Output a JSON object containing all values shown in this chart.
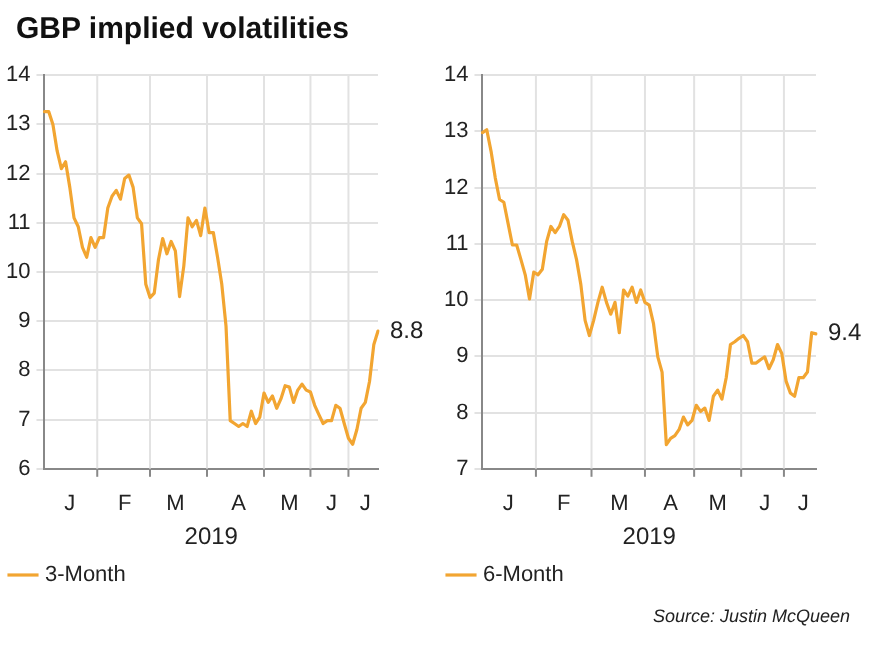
{
  "chart_data": [
    {
      "type": "line",
      "title": "GBP implied volatilities",
      "xlabel": "2019",
      "legend": "bottom",
      "grid": true,
      "marker": "none",
      "line_style": "solid",
      "categories": [
        null,
        null,
        null,
        null,
        null,
        null,
        "J",
        null,
        null,
        null,
        null,
        null,
        null,
        null,
        null,
        null,
        null,
        null,
        null,
        "F",
        null,
        null,
        null,
        null,
        null,
        null,
        null,
        null,
        null,
        null,
        null,
        "M",
        null,
        null,
        null,
        null,
        null,
        null,
        null,
        null,
        null,
        null,
        null,
        null,
        null,
        null,
        "A",
        null,
        null,
        null,
        null,
        null,
        null,
        null,
        null,
        null,
        null,
        null,
        "M",
        null,
        null,
        null,
        null,
        null,
        null,
        null,
        null,
        null,
        "J",
        null,
        null,
        null,
        null,
        null,
        null,
        null,
        "J",
        null,
        null,
        null
      ],
      "ylim": [
        6,
        14
      ],
      "yticks": [
        6,
        7,
        8,
        9,
        10,
        11,
        12,
        13,
        14
      ],
      "series": [
        {
          "name": "3-Month",
          "color": "#f2a531",
          "value_labels": [
            null,
            null,
            null,
            null,
            null,
            null,
            null,
            null,
            null,
            null,
            null,
            null,
            null,
            null,
            null,
            null,
            null,
            null,
            null,
            null,
            null,
            null,
            null,
            null,
            null,
            null,
            null,
            null,
            null,
            null,
            null,
            null,
            null,
            null,
            null,
            null,
            null,
            null,
            null,
            null,
            null,
            null,
            null,
            null,
            null,
            null,
            null,
            null,
            null,
            null,
            null,
            null,
            null,
            null,
            null,
            null,
            null,
            null,
            null,
            null,
            null,
            null,
            null,
            null,
            null,
            null,
            null,
            null,
            null,
            null,
            null,
            null,
            null,
            null,
            null,
            null,
            null,
            null,
            null,
            "8.8"
          ],
          "values": [
            13.26,
            13.26,
            13.0,
            12.46,
            12.1,
            12.24,
            11.72,
            11.1,
            10.92,
            10.5,
            10.3,
            10.7,
            10.5,
            10.7,
            10.7,
            11.3,
            11.54,
            11.66,
            11.48,
            11.9,
            11.97,
            11.72,
            11.1,
            10.98,
            9.75,
            9.48,
            9.57,
            10.25,
            10.68,
            10.37,
            10.62,
            10.43,
            9.5,
            10.12,
            11.1,
            10.92,
            11.05,
            10.74,
            11.3,
            10.8,
            10.8,
            10.3,
            9.75,
            8.9,
            6.98,
            6.92,
            6.86,
            6.92,
            6.86,
            7.17,
            6.92,
            7.05,
            7.54,
            7.35,
            7.48,
            7.23,
            7.42,
            7.69,
            7.66,
            7.35,
            7.6,
            7.72,
            7.6,
            7.56,
            7.29,
            7.1,
            6.92,
            6.98,
            6.98,
            7.29,
            7.23,
            6.92,
            6.62,
            6.5,
            6.8,
            7.23,
            7.35,
            7.78,
            8.52,
            8.8
          ]
        }
      ]
    },
    {
      "type": "line",
      "xlabel": "2019",
      "legend": "bottom",
      "grid": true,
      "marker": "none",
      "line_style": "solid",
      "categories": [
        null,
        null,
        null,
        null,
        null,
        null,
        "J",
        null,
        null,
        null,
        null,
        null,
        null,
        null,
        null,
        null,
        null,
        null,
        null,
        "F",
        null,
        null,
        null,
        null,
        null,
        null,
        null,
        null,
        null,
        null,
        null,
        null,
        "M",
        null,
        null,
        null,
        null,
        null,
        null,
        null,
        null,
        null,
        null,
        null,
        "A",
        null,
        null,
        null,
        null,
        null,
        null,
        null,
        null,
        null,
        null,
        "M",
        null,
        null,
        null,
        null,
        null,
        null,
        null,
        null,
        null,
        null,
        "J",
        null,
        null,
        null,
        null,
        null,
        null,
        null,
        null,
        "J",
        null,
        null,
        null
      ],
      "ylim": [
        7,
        14
      ],
      "yticks": [
        7,
        8,
        9,
        10,
        11,
        12,
        13,
        14
      ],
      "annotations": [
        "Source: Justin McQueen"
      ],
      "series": [
        {
          "name": "6-Month",
          "color": "#f2a531",
          "value_labels": [
            null,
            null,
            null,
            null,
            null,
            null,
            null,
            null,
            null,
            null,
            null,
            null,
            null,
            null,
            null,
            null,
            null,
            null,
            null,
            null,
            null,
            null,
            null,
            null,
            null,
            null,
            null,
            null,
            null,
            null,
            null,
            null,
            null,
            null,
            null,
            null,
            null,
            null,
            null,
            null,
            null,
            null,
            null,
            null,
            null,
            null,
            null,
            null,
            null,
            null,
            null,
            null,
            null,
            null,
            null,
            null,
            null,
            null,
            null,
            null,
            null,
            null,
            null,
            null,
            null,
            null,
            null,
            null,
            null,
            null,
            null,
            null,
            null,
            null,
            null,
            null,
            null,
            null,
            "9.4"
          ],
          "values": [
            12.98,
            13.03,
            12.65,
            12.17,
            11.79,
            11.74,
            11.36,
            10.98,
            10.98,
            10.72,
            10.45,
            10.02,
            10.5,
            10.45,
            10.55,
            11.04,
            11.31,
            11.2,
            11.31,
            11.52,
            11.42,
            11.04,
            10.72,
            10.28,
            9.64,
            9.37,
            9.64,
            9.96,
            10.23,
            9.96,
            9.75,
            9.96,
            9.42,
            10.18,
            10.07,
            10.23,
            9.96,
            10.18,
            9.96,
            9.91,
            9.58,
            8.99,
            8.72,
            7.43,
            7.54,
            7.59,
            7.7,
            7.92,
            7.78,
            7.86,
            8.13,
            8.02,
            8.08,
            7.86,
            8.29,
            8.4,
            8.24,
            8.62,
            9.21,
            9.26,
            9.32,
            9.37,
            9.26,
            8.88,
            8.88,
            8.94,
            8.99,
            8.78,
            8.94,
            9.21,
            9.05,
            8.56,
            8.35,
            8.29,
            8.62,
            8.62,
            8.72,
            9.42,
            9.4
          ]
        }
      ]
    }
  ]
}
